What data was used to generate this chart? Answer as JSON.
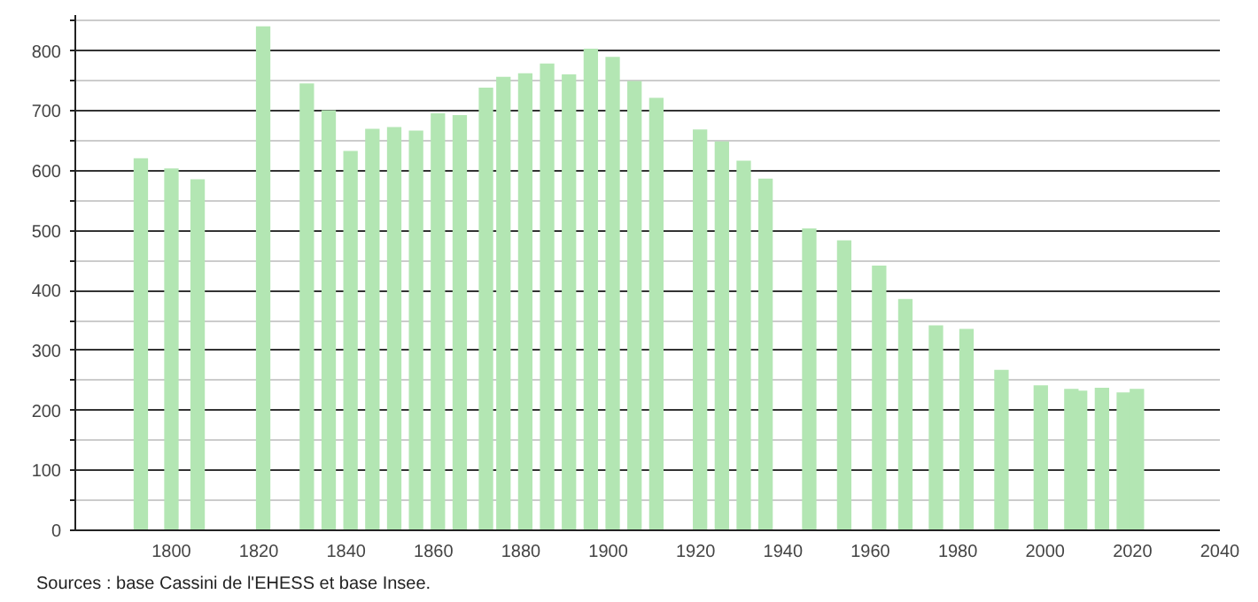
{
  "chart_data": {
    "type": "bar",
    "color": "#b3e6b3",
    "x": [
      1793,
      1800,
      1806,
      1821,
      1831,
      1836,
      1841,
      1846,
      1851,
      1856,
      1861,
      1866,
      1872,
      1876,
      1881,
      1886,
      1891,
      1896,
      1901,
      1906,
      1911,
      1921,
      1926,
      1931,
      1936,
      1946,
      1954,
      1962,
      1968,
      1975,
      1982,
      1990,
      1999,
      2006,
      2008,
      2013,
      2018,
      2021
    ],
    "values": [
      621,
      604,
      586,
      841,
      746,
      701,
      633,
      670,
      673,
      667,
      696,
      693,
      739,
      757,
      763,
      779,
      761,
      804,
      790,
      750,
      722,
      669,
      649,
      617,
      587,
      504,
      484,
      442,
      386,
      342,
      336,
      268,
      242,
      236,
      233,
      238,
      230,
      236
    ],
    "xlim": [
      1778,
      2040
    ],
    "xticks": [
      1800,
      1820,
      1840,
      1860,
      1880,
      1900,
      1920,
      1940,
      1960,
      1980,
      2000,
      2020,
      2040
    ],
    "ylim": [
      0,
      860
    ],
    "yticks": [
      0,
      {
        "value": 50,
        "label": null
      },
      100,
      {
        "value": 150,
        "label": null
      },
      200,
      {
        "value": 250,
        "label": null
      },
      300,
      {
        "value": 350,
        "label": null
      },
      400,
      {
        "value": 450,
        "label": null
      },
      500,
      {
        "value": 550,
        "label": null
      },
      600,
      {
        "value": 650,
        "label": null
      },
      700,
      {
        "value": 750,
        "label": null
      },
      800,
      {
        "value": 850,
        "label": null
      }
    ],
    "grid": "y",
    "annotations": [
      "Sources : base Cassini de l'EHESS et base Insee."
    ]
  }
}
